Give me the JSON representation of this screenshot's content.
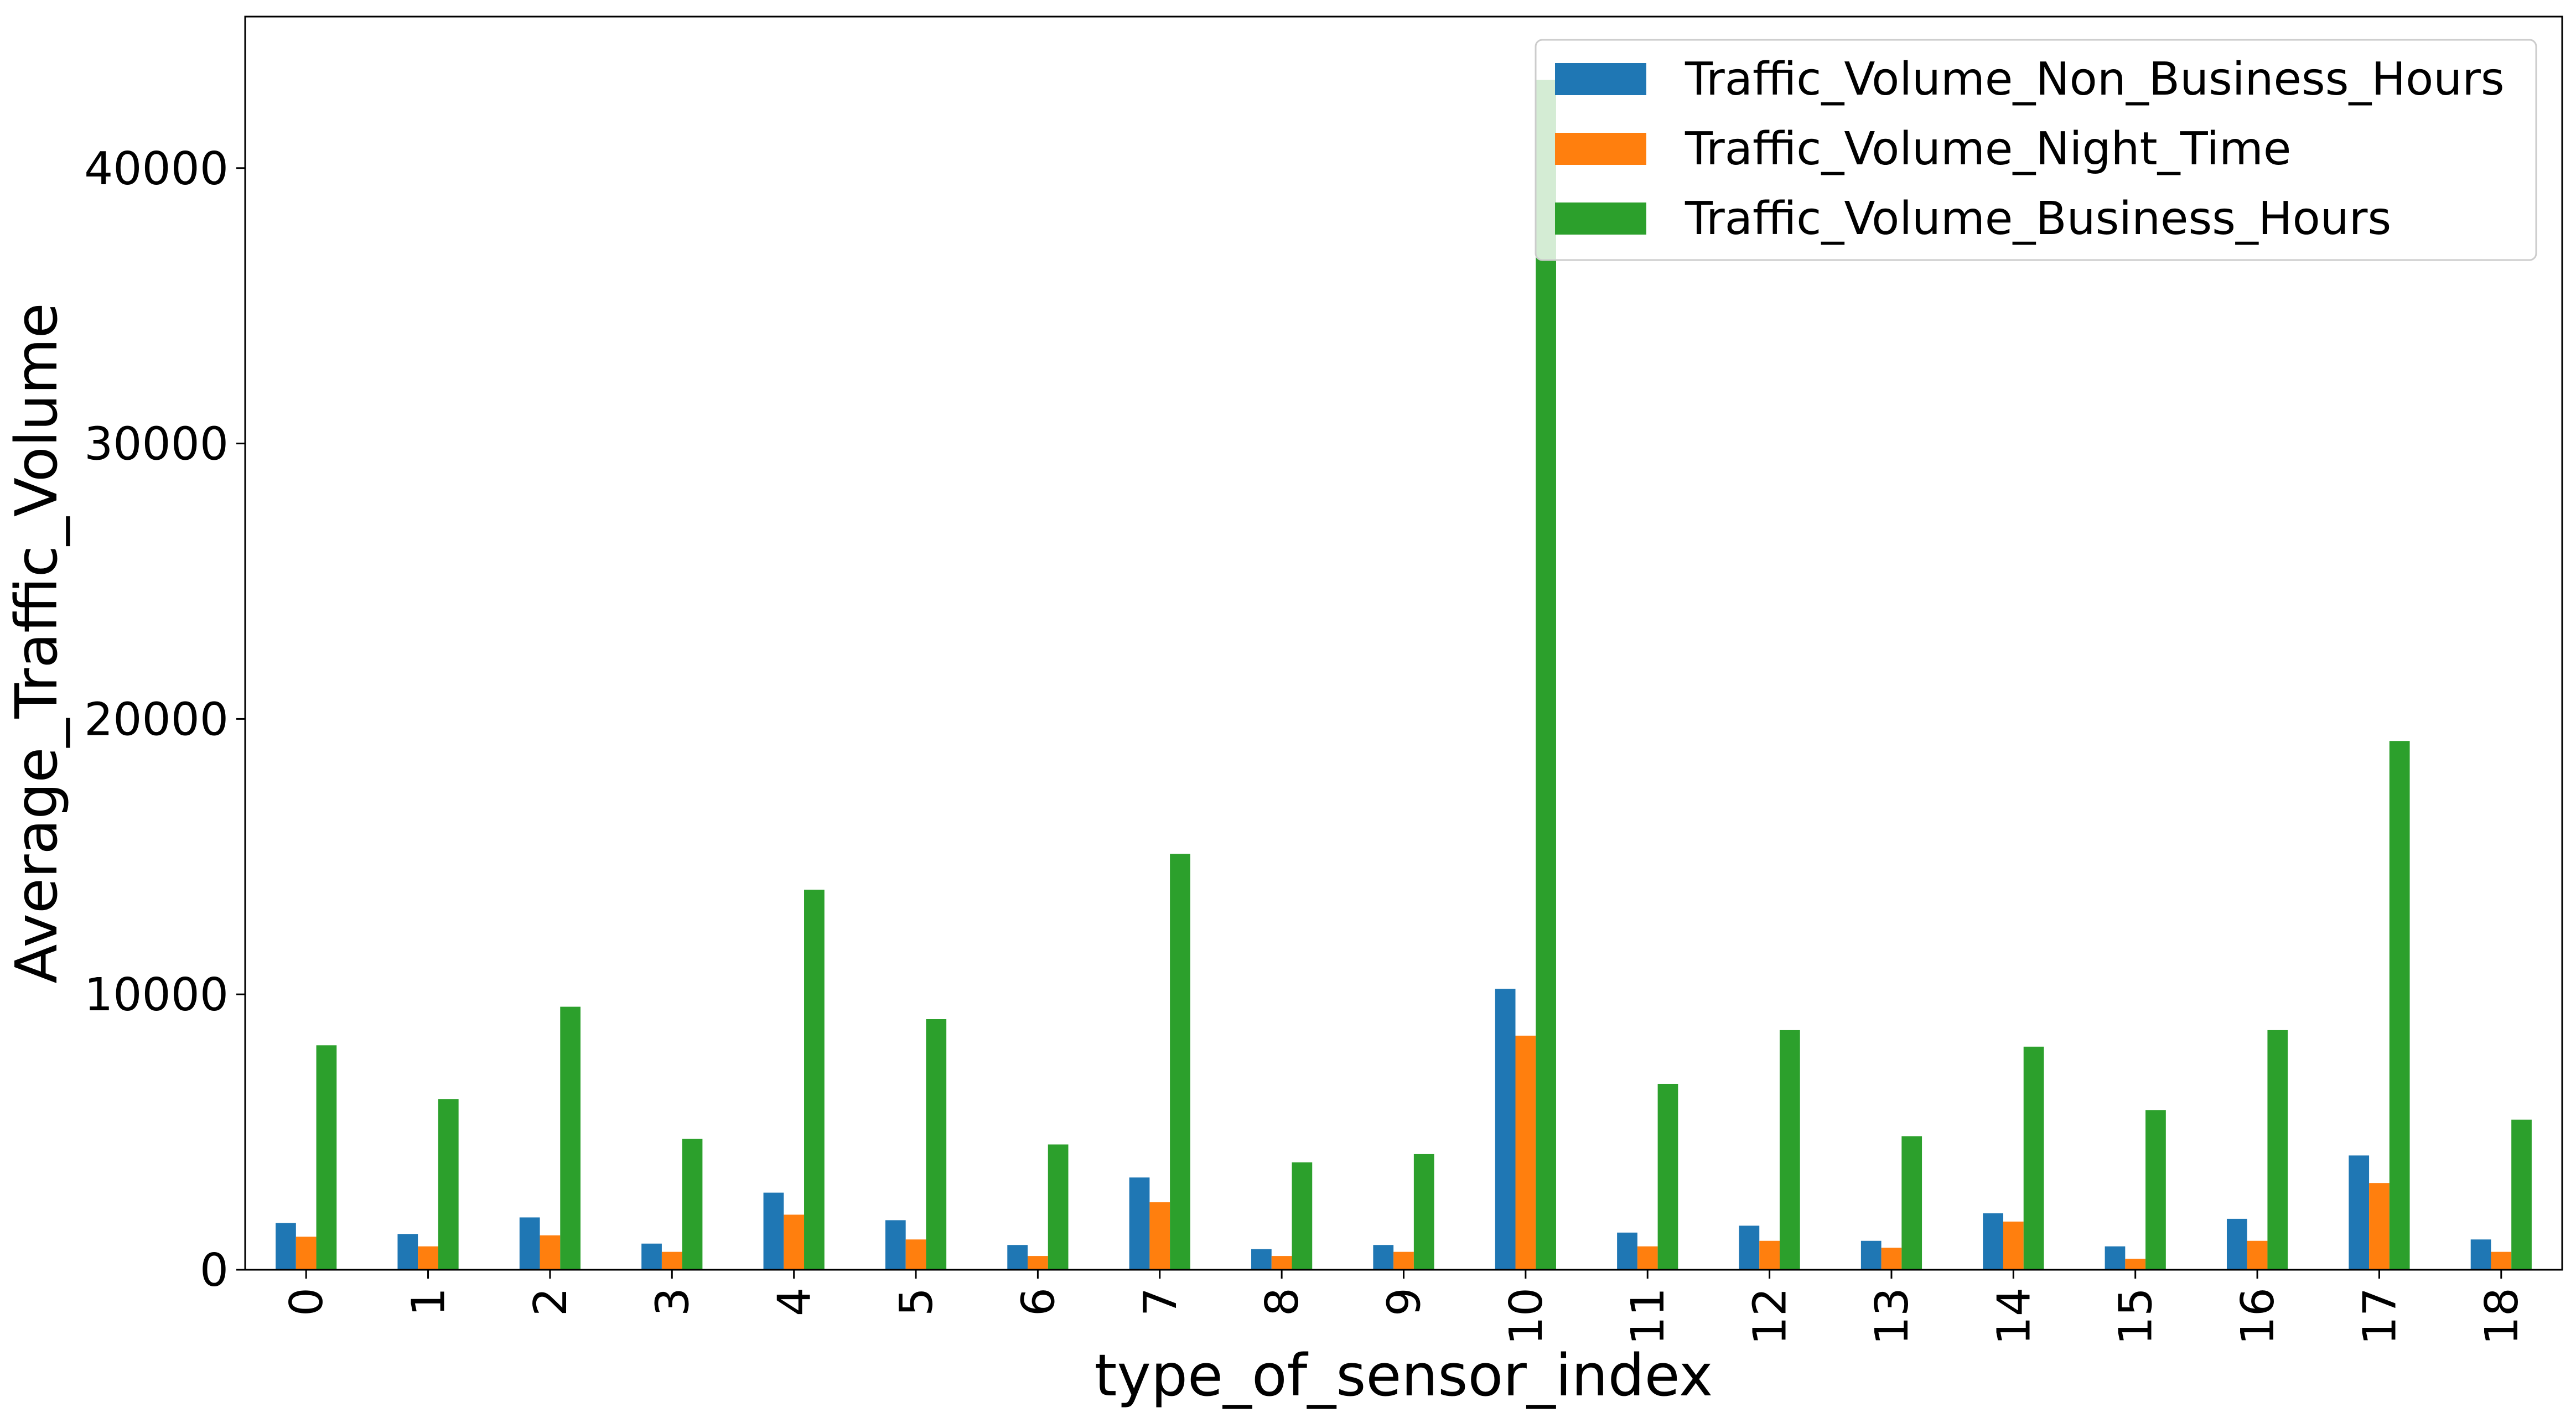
{
  "chart_data": {
    "type": "bar",
    "xlabel": "type_of_sensor_index",
    "ylabel": "Average_Traffic_Volume",
    "ylim": [
      0,
      45500
    ],
    "yticks": [
      0,
      10000,
      20000,
      30000,
      40000
    ],
    "ytick_labels": [
      "0",
      "10000",
      "20000",
      "30000",
      "40000"
    ],
    "grid": false,
    "legend_position": "top-right",
    "categories": [
      "0",
      "1",
      "2",
      "3",
      "4",
      "5",
      "6",
      "7",
      "8",
      "9",
      "10",
      "11",
      "12",
      "13",
      "14",
      "15",
      "16",
      "17",
      "18"
    ],
    "series": [
      {
        "name": "Traffic_Volume_Non_Business_Hours",
        "color": "#1f77b4",
        "values": [
          1700,
          1300,
          1900,
          950,
          2800,
          1800,
          900,
          3350,
          750,
          900,
          10200,
          1350,
          1600,
          1050,
          2050,
          850,
          1850,
          4150,
          1100
        ]
      },
      {
        "name": "Traffic_Volume_Night_Time",
        "color": "#ff7f0e",
        "values": [
          1200,
          850,
          1250,
          650,
          2000,
          1100,
          500,
          2450,
          500,
          650,
          8500,
          850,
          1050,
          800,
          1750,
          400,
          1050,
          3150,
          650
        ]
      },
      {
        "name": "Traffic_Volume_Business_Hours",
        "color": "#2ca02c",
        "values": [
          8150,
          6200,
          9550,
          4750,
          13800,
          9100,
          4550,
          15100,
          3900,
          4200,
          43200,
          6750,
          8700,
          4850,
          8100,
          5800,
          8700,
          19200,
          5450
        ]
      }
    ]
  }
}
